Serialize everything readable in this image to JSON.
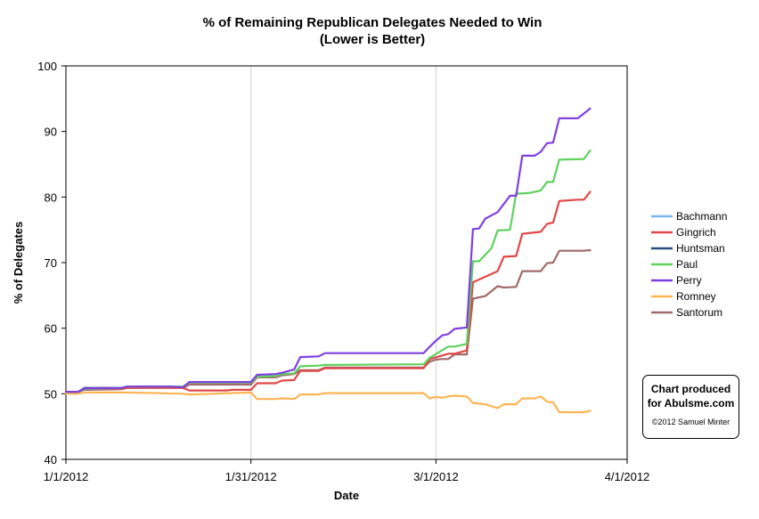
{
  "chart_data": {
    "type": "line",
    "title": "% of Remaining Republican Delegates Needed to Win",
    "subtitle": "(Lower is Better)",
    "xlabel": "Date",
    "ylabel": "% of Delegates",
    "ylim": [
      40,
      100
    ],
    "yticks": [
      40,
      50,
      60,
      70,
      80,
      90,
      100
    ],
    "xlim": [
      "2012-01-01",
      "2012-04-01"
    ],
    "xticks": [
      "2012-01-01",
      "2012-01-31",
      "2012-03-01",
      "2012-04-01"
    ],
    "xtick_labels": [
      "1/1/2012",
      "1/31/2012",
      "3/1/2012",
      "4/1/2012"
    ],
    "grid": "vertical",
    "legend_position": "right",
    "series": [
      {
        "name": "Bachmann",
        "color": "#7cb5ec",
        "x": [
          "2012-01-01",
          "2012-01-03",
          "2012-01-04",
          "2012-01-05"
        ],
        "y": [
          50.3,
          50.3,
          50.6,
          50.6
        ]
      },
      {
        "name": "Gingrich",
        "color": "#e04848",
        "x": [
          "2012-01-01",
          "2012-01-03",
          "2012-01-04",
          "2012-01-10",
          "2012-01-11",
          "2012-01-20",
          "2012-01-21",
          "2012-01-27",
          "2012-01-28",
          "2012-01-31",
          "2012-02-01",
          "2012-02-04",
          "2012-02-05",
          "2012-02-07",
          "2012-02-08",
          "2012-02-11",
          "2012-02-12",
          "2012-02-28",
          "2012-02-29",
          "2012-03-03",
          "2012-03-04",
          "2012-03-06",
          "2012-03-07",
          "2012-03-11",
          "2012-03-12",
          "2012-03-14",
          "2012-03-15",
          "2012-03-18",
          "2012-03-19",
          "2012-03-20",
          "2012-03-21",
          "2012-03-24",
          "2012-03-25",
          "2012-03-26"
        ],
        "y": [
          50.3,
          50.3,
          50.7,
          50.8,
          50.9,
          50.9,
          50.5,
          50.5,
          50.6,
          50.6,
          51.6,
          51.6,
          52.0,
          52.1,
          53.5,
          53.5,
          53.9,
          53.9,
          55.3,
          56.1,
          56.1,
          56.6,
          67.0,
          68.7,
          70.9,
          71.0,
          74.4,
          74.7,
          75.9,
          76.1,
          79.4,
          79.6,
          79.6,
          80.8
        ]
      },
      {
        "name": "Huntsman",
        "color": "#2a4d80",
        "x": [
          "2012-01-01",
          "2012-01-03",
          "2012-01-04",
          "2012-01-10",
          "2012-01-11",
          "2012-01-15",
          "2012-01-16"
        ],
        "y": [
          50.3,
          50.3,
          50.9,
          50.9,
          51.1,
          51.1,
          51.1
        ]
      },
      {
        "name": "Paul",
        "color": "#5ed15e",
        "x": [
          "2012-01-01",
          "2012-01-03",
          "2012-01-04",
          "2012-01-10",
          "2012-01-11",
          "2012-01-20",
          "2012-01-21",
          "2012-01-31",
          "2012-02-01",
          "2012-02-04",
          "2012-02-05",
          "2012-02-07",
          "2012-02-08",
          "2012-02-11",
          "2012-02-12",
          "2012-02-28",
          "2012-02-29",
          "2012-03-03",
          "2012-03-04",
          "2012-03-06",
          "2012-03-07",
          "2012-03-08",
          "2012-03-10",
          "2012-03-11",
          "2012-03-13",
          "2012-03-14",
          "2012-03-16",
          "2012-03-18",
          "2012-03-19",
          "2012-03-20",
          "2012-03-21",
          "2012-03-25",
          "2012-03-26"
        ],
        "y": [
          50.3,
          50.3,
          50.7,
          50.9,
          51.1,
          51.1,
          51.7,
          51.7,
          52.6,
          52.7,
          53.0,
          53.1,
          54.2,
          54.3,
          54.4,
          54.5,
          55.5,
          57.2,
          57.2,
          57.6,
          70.2,
          70.2,
          72.2,
          74.9,
          75.0,
          80.5,
          80.6,
          81.0,
          82.3,
          82.3,
          85.7,
          85.8,
          87.1
        ]
      },
      {
        "name": "Perry",
        "color": "#8040e0",
        "x": [
          "2012-01-01",
          "2012-01-03",
          "2012-01-04",
          "2012-01-10",
          "2012-01-11",
          "2012-01-18",
          "2012-01-20",
          "2012-01-21",
          "2012-01-31",
          "2012-02-01",
          "2012-02-04",
          "2012-02-05",
          "2012-02-07",
          "2012-02-08",
          "2012-02-11",
          "2012-02-12",
          "2012-02-28",
          "2012-02-29",
          "2012-03-01",
          "2012-03-02",
          "2012-03-03",
          "2012-03-04",
          "2012-03-06",
          "2012-03-07",
          "2012-03-08",
          "2012-03-09",
          "2012-03-11",
          "2012-03-13",
          "2012-03-14",
          "2012-03-15",
          "2012-03-17",
          "2012-03-18",
          "2012-03-19",
          "2012-03-20",
          "2012-03-21",
          "2012-03-24",
          "2012-03-26"
        ],
        "y": [
          50.3,
          50.3,
          50.8,
          50.9,
          51.1,
          51.1,
          51.0,
          51.8,
          51.8,
          52.9,
          53.0,
          53.2,
          53.7,
          55.6,
          55.7,
          56.2,
          56.2,
          57.2,
          58.1,
          58.9,
          59.1,
          59.9,
          60.1,
          75.1,
          75.2,
          76.7,
          77.7,
          80.2,
          80.2,
          86.3,
          86.3,
          86.9,
          88.2,
          88.3,
          92.0,
          92.0,
          93.5
        ]
      },
      {
        "name": "Romney",
        "color": "#ffb454",
        "x": [
          "2012-01-01",
          "2012-01-03",
          "2012-01-04",
          "2012-01-10",
          "2012-01-11",
          "2012-01-20",
          "2012-01-21",
          "2012-01-31",
          "2012-02-01",
          "2012-02-04",
          "2012-02-05",
          "2012-02-07",
          "2012-02-08",
          "2012-02-11",
          "2012-02-12",
          "2012-02-28",
          "2012-02-29",
          "2012-03-01",
          "2012-03-02",
          "2012-03-03",
          "2012-03-04",
          "2012-03-06",
          "2012-03-07",
          "2012-03-09",
          "2012-03-11",
          "2012-03-12",
          "2012-03-14",
          "2012-03-15",
          "2012-03-17",
          "2012-03-18",
          "2012-03-19",
          "2012-03-20",
          "2012-03-21",
          "2012-03-25",
          "2012-03-26"
        ],
        "y": [
          50.0,
          50.0,
          50.2,
          50.2,
          50.2,
          50.0,
          49.9,
          50.2,
          49.2,
          49.2,
          49.3,
          49.2,
          49.9,
          49.9,
          50.1,
          50.1,
          49.3,
          49.5,
          49.4,
          49.6,
          49.7,
          49.6,
          48.6,
          48.4,
          47.8,
          48.4,
          48.4,
          49.3,
          49.3,
          49.6,
          48.8,
          48.7,
          47.2,
          47.2,
          47.4
        ]
      },
      {
        "name": "Santorum",
        "color": "#a06a6a",
        "x": [
          "2012-01-01",
          "2012-01-03",
          "2012-01-04",
          "2012-01-10",
          "2012-01-11",
          "2012-01-20",
          "2012-01-21",
          "2012-01-31",
          "2012-02-01",
          "2012-02-04",
          "2012-02-05",
          "2012-02-07",
          "2012-02-08",
          "2012-02-11",
          "2012-02-12",
          "2012-02-28",
          "2012-02-29",
          "2012-03-01",
          "2012-03-02",
          "2012-03-03",
          "2012-03-04",
          "2012-03-06",
          "2012-03-07",
          "2012-03-09",
          "2012-03-11",
          "2012-03-12",
          "2012-03-14",
          "2012-03-15",
          "2012-03-18",
          "2012-03-19",
          "2012-03-20",
          "2012-03-21",
          "2012-03-25",
          "2012-03-26"
        ],
        "y": [
          50.3,
          50.3,
          50.6,
          50.7,
          50.9,
          50.9,
          51.4,
          51.4,
          52.5,
          52.5,
          52.8,
          53.0,
          53.6,
          53.6,
          54.0,
          54.0,
          54.9,
          55.2,
          55.3,
          55.3,
          56.0,
          56.0,
          64.5,
          64.9,
          66.4,
          66.2,
          66.3,
          68.7,
          68.7,
          69.9,
          70.0,
          71.8,
          71.8,
          71.9
        ]
      }
    ]
  },
  "credit": {
    "line1": "Chart produced",
    "line2": "for Abulsme.com",
    "copyright": "©2012 Samuel Minter"
  }
}
